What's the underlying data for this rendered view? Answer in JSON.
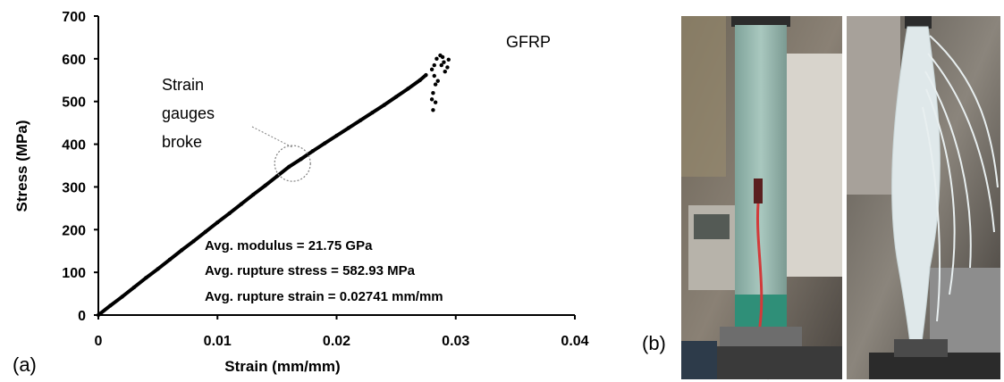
{
  "chart_data": {
    "type": "scatter",
    "title": "",
    "xlabel": "Strain (mm/mm)",
    "ylabel": "Stress (MPa)",
    "xlim": [
      0,
      0.04
    ],
    "ylim": [
      0,
      700
    ],
    "x_ticks": [
      "0",
      "0.01",
      "0.02",
      "0.03",
      "0.04"
    ],
    "y_ticks": [
      "0",
      "100",
      "200",
      "300",
      "400",
      "500",
      "600",
      "700"
    ],
    "grid": false,
    "legend": "none",
    "series": [
      {
        "name": "",
        "color": "#000000",
        "points": [
          [
            0.0,
            0
          ],
          [
            0.001,
            22
          ],
          [
            0.002,
            43
          ],
          [
            0.003,
            65
          ],
          [
            0.004,
            87
          ],
          [
            0.005,
            108
          ],
          [
            0.006,
            130
          ],
          [
            0.007,
            152
          ],
          [
            0.008,
            173
          ],
          [
            0.009,
            195
          ],
          [
            0.01,
            217
          ],
          [
            0.011,
            238
          ],
          [
            0.012,
            260
          ],
          [
            0.013,
            282
          ],
          [
            0.014,
            303
          ],
          [
            0.015,
            325
          ],
          [
            0.016,
            347
          ],
          [
            0.017,
            365
          ],
          [
            0.018,
            384
          ],
          [
            0.019,
            402
          ],
          [
            0.02,
            420
          ],
          [
            0.021,
            438
          ],
          [
            0.022,
            456
          ],
          [
            0.023,
            474
          ],
          [
            0.024,
            492
          ],
          [
            0.025,
            511
          ],
          [
            0.026,
            530
          ],
          [
            0.027,
            550
          ],
          [
            0.0275,
            562
          ],
          [
            0.028,
            575
          ],
          [
            0.0282,
            585
          ],
          [
            0.0284,
            600
          ],
          [
            0.0287,
            608
          ],
          [
            0.0289,
            604
          ],
          [
            0.029,
            592
          ],
          [
            0.0293,
            580
          ],
          [
            0.0282,
            560
          ],
          [
            0.0283,
            540
          ],
          [
            0.0281,
            520
          ],
          [
            0.028,
            505
          ],
          [
            0.0281,
            480
          ],
          [
            0.0283,
            498
          ],
          [
            0.0285,
            548
          ],
          [
            0.0288,
            585
          ],
          [
            0.0291,
            570
          ],
          [
            0.0294,
            598
          ]
        ]
      }
    ],
    "series_label": "GFRP",
    "annotations": {
      "strain_gauges": [
        "Strain",
        "gauges",
        "broke"
      ],
      "stats": [
        "Avg. modulus = 21.75 GPa",
        "Avg. rupture stress = 582.93 MPa",
        "Avg. rupture strain = 0.02741 mm/mm"
      ],
      "circle_center": [
        0.0163,
        355
      ]
    }
  },
  "panels": {
    "label_a": "(a)",
    "label_b": "(b)"
  },
  "photos": {
    "left": "tensile specimen with strain gauge in grips",
    "right": "ruptured GFRP specimen with splayed fibers"
  }
}
